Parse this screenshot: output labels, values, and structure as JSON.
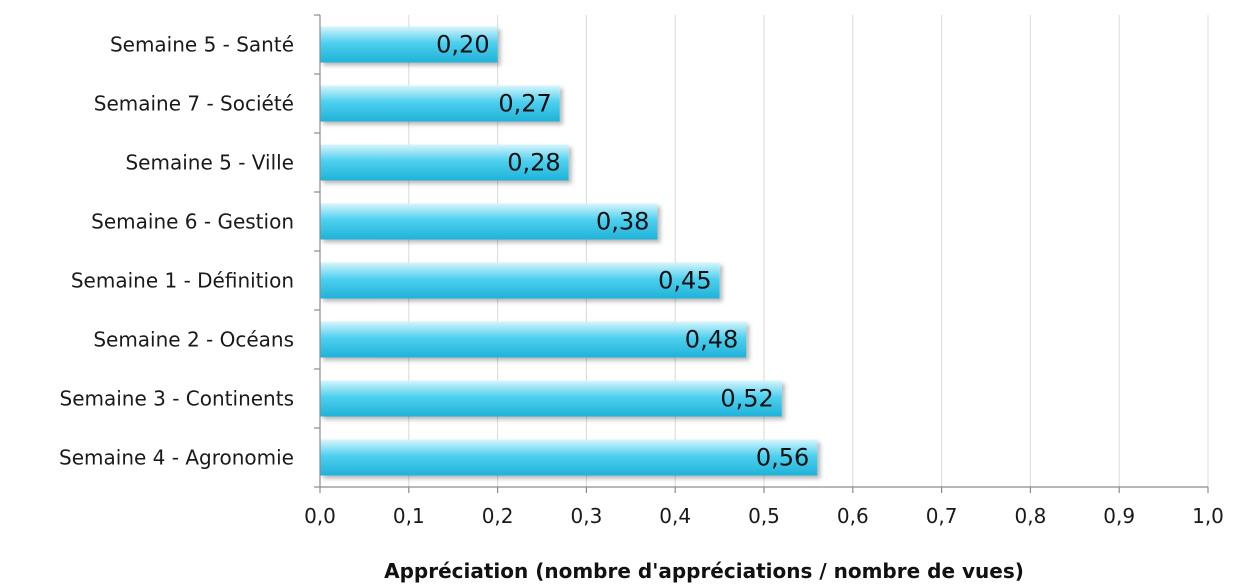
{
  "chart_data": {
    "type": "bar",
    "orientation": "horizontal",
    "categories": [
      "Semaine 5 - Santé",
      "Semaine 7 - Société",
      "Semaine 5 - Ville",
      "Semaine 6 - Gestion",
      "Semaine 1 - Définition",
      "Semaine 2 - Océans",
      "Semaine 3 - Continents",
      "Semaine 4 - Agronomie"
    ],
    "values": [
      0.2,
      0.27,
      0.28,
      0.38,
      0.45,
      0.48,
      0.52,
      0.56
    ],
    "data_labels": [
      "0,20",
      "0,27",
      "0,28",
      "0,38",
      "0,45",
      "0,48",
      "0,52",
      "0,56"
    ],
    "xlabel": "Appréciation (nombre d'appréciations / nombre de vues)",
    "xlim": [
      0,
      1.0
    ],
    "x_ticks": [
      0.0,
      0.1,
      0.2,
      0.3,
      0.4,
      0.5,
      0.6,
      0.7,
      0.8,
      0.9,
      1.0
    ],
    "x_tick_labels": [
      "0,0",
      "0,1",
      "0,2",
      "0,3",
      "0,4",
      "0,5",
      "0,6",
      "0,7",
      "0,8",
      "0,9",
      "1,0"
    ],
    "grid": true,
    "legend": "none",
    "colors": {
      "bar_top": "#d7f5fc",
      "bar_mid": "#4fd0ef",
      "bar_bottom": "#1fb2d8",
      "grid": "#d9d9d9",
      "axis": "#8c8c8c"
    }
  }
}
